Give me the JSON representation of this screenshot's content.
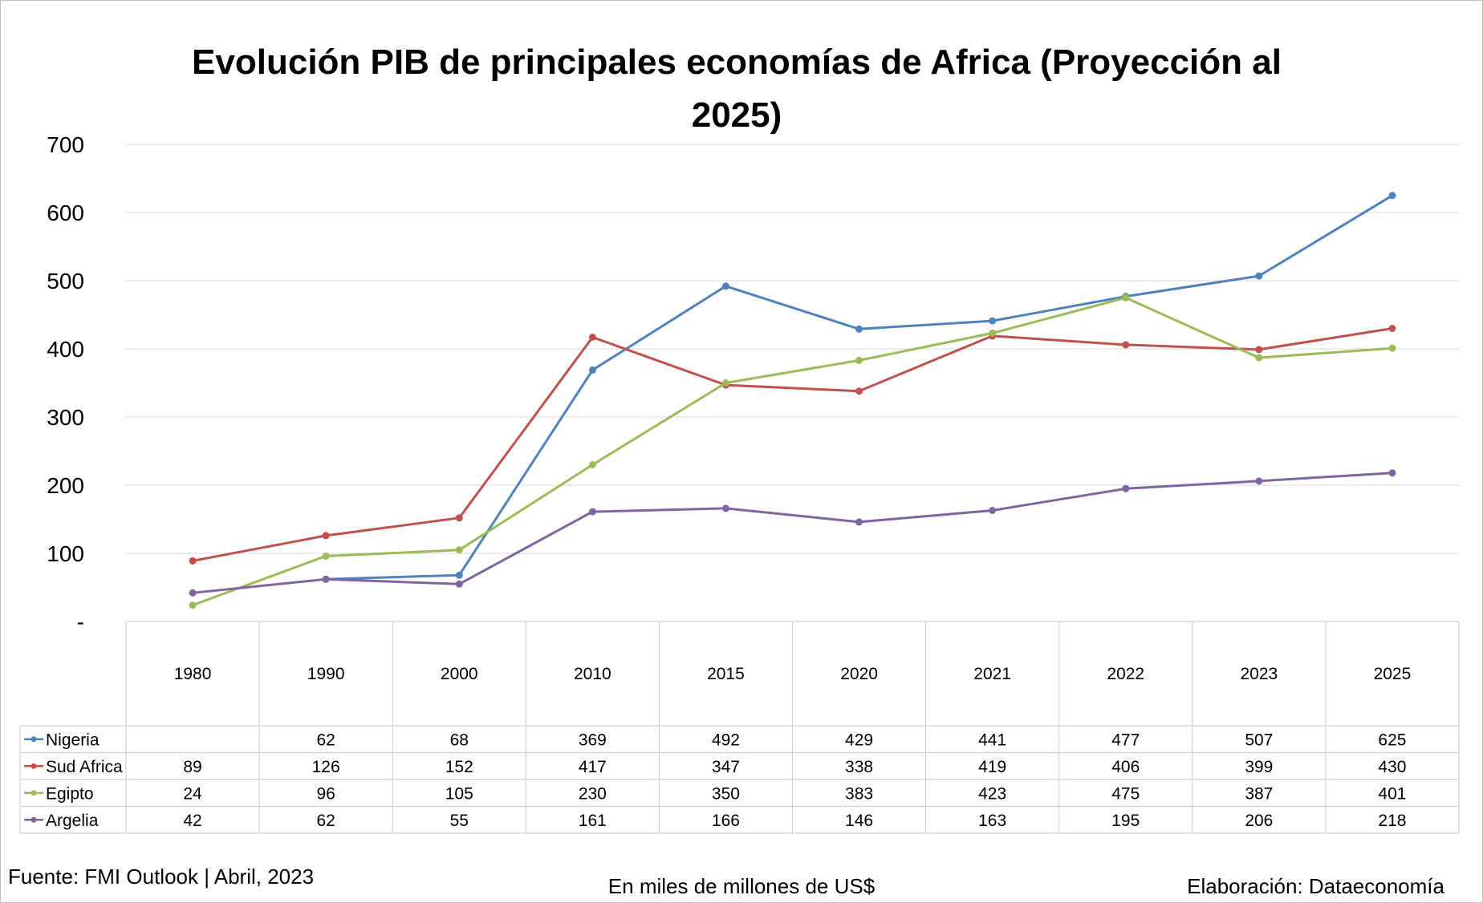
{
  "chart_data": {
    "type": "line",
    "title": "Evolución PIB de principales economías de Africa (Proyección al 2025)",
    "title_lines": [
      "Evolución PIB de principales economías de Africa (Proyección al",
      "2025)"
    ],
    "categories": [
      "1980",
      "1990",
      "2000",
      "2010",
      "2015",
      "2020",
      "2021",
      "2022",
      "2023",
      "2025"
    ],
    "y_ticks": [
      "-",
      "100",
      "200",
      "300",
      "400",
      "500",
      "600",
      "700"
    ],
    "ylim": [
      0,
      700
    ],
    "grid": true,
    "legend": "data-table",
    "series": [
      {
        "name": "Nigeria",
        "color": "#4f81bd",
        "values": [
          null,
          62,
          68,
          369,
          492,
          429,
          441,
          477,
          507,
          625
        ]
      },
      {
        "name": "Sud Africa",
        "color": "#c0504d",
        "values": [
          89,
          126,
          152,
          417,
          347,
          338,
          419,
          406,
          399,
          430
        ]
      },
      {
        "name": "Egipto",
        "color": "#9bbb59",
        "values": [
          24,
          96,
          105,
          230,
          350,
          383,
          423,
          475,
          387,
          401
        ]
      },
      {
        "name": "Argelia",
        "color": "#8064a2",
        "values": [
          42,
          62,
          55,
          161,
          166,
          146,
          163,
          195,
          206,
          218
        ]
      }
    ]
  },
  "footer": {
    "source": "Fuente: FMI Outlook | Abril, 2023",
    "units": "En miles de millones de US$",
    "credit": "Elaboración: Dataeconomía"
  }
}
